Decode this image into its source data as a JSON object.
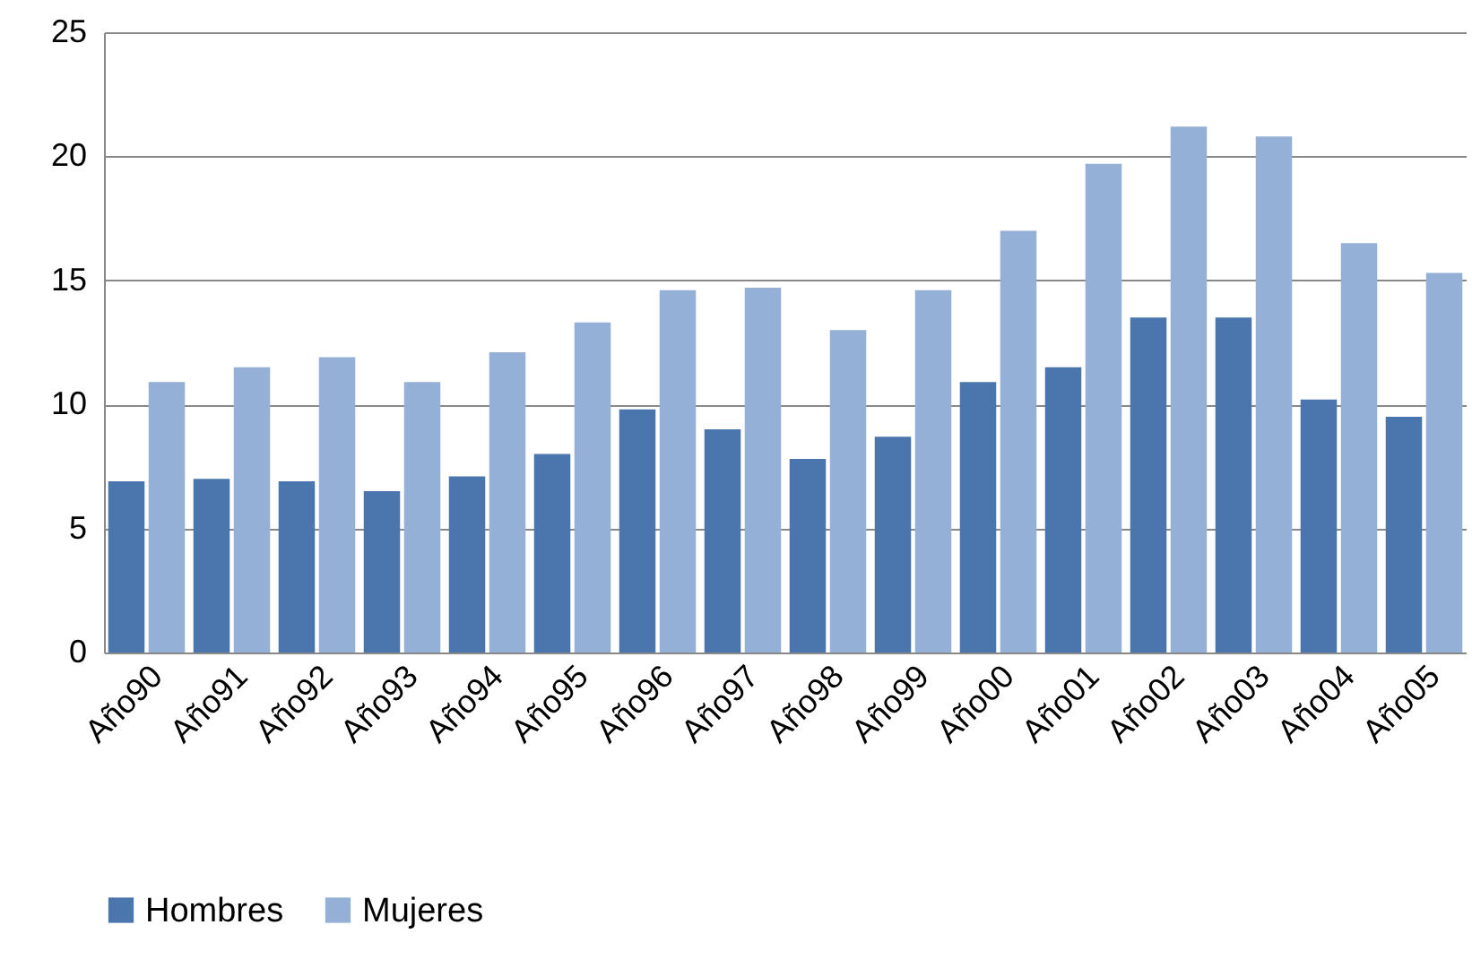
{
  "chart_data": {
    "type": "bar",
    "categories": [
      "Año90",
      "Año91",
      "Año92",
      "Año93",
      "Año94",
      "Año95",
      "Año96",
      "Año97",
      "Año98",
      "Año99",
      "Año00",
      "Año01",
      "Año02",
      "Año03",
      "Año04",
      "Año05"
    ],
    "series": [
      {
        "name": "Hombres",
        "color": "#4a76ad",
        "values": [
          6.9,
          7.0,
          6.9,
          6.5,
          7.1,
          8.0,
          9.8,
          9.0,
          7.8,
          8.7,
          10.9,
          11.5,
          13.5,
          13.5,
          10.2,
          9.5
        ]
      },
      {
        "name": "Mujeres",
        "color": "#95b0d6",
        "values": [
          10.9,
          11.5,
          11.9,
          10.9,
          12.1,
          13.3,
          14.6,
          14.7,
          13.0,
          14.6,
          17.0,
          19.7,
          21.2,
          20.8,
          16.5,
          15.3
        ]
      }
    ],
    "ylim": [
      0,
      25
    ],
    "yticks": [
      0,
      5,
      10,
      15,
      20,
      25
    ],
    "grid": "y",
    "legend": "bottom"
  }
}
